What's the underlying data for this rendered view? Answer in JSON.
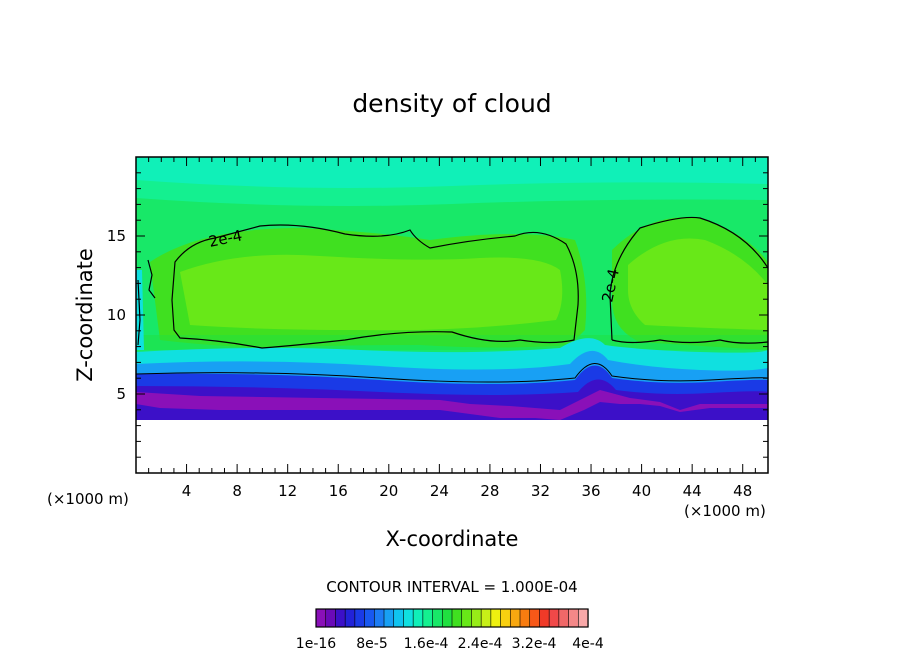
{
  "chart_data": {
    "type": "heatmap",
    "title": "density of cloud",
    "xlabel": "X-coordinate",
    "ylabel": "Z-coordinate",
    "x_unit": "(×1000 m)",
    "xlim": [
      0,
      50
    ],
    "ylim": [
      0,
      20
    ],
    "x_ticks": [
      "4",
      "8",
      "12",
      "16",
      "20",
      "24",
      "28",
      "32",
      "36",
      "40",
      "44",
      "48"
    ],
    "y_ticks": [
      "5",
      "10",
      "15"
    ],
    "contour_interval_text": "CONTOUR INTERVAL = 1.000E-04",
    "contour_label": "2e-4",
    "contour_level": 0.0002,
    "colorbar": {
      "tick_labels": [
        "1e-16",
        "8e-5",
        "1.6e-4",
        "2.4e-4",
        "3.2e-4",
        "4e-4"
      ],
      "colors": [
        "#8a10b8",
        "#6a0ab8",
        "#3c10c8",
        "#2222d8",
        "#1a3ae6",
        "#1858f0",
        "#1c7cf4",
        "#18a0f4",
        "#10c4f0",
        "#10e0e0",
        "#10f0b8",
        "#14f090",
        "#18e868",
        "#20e040",
        "#40e020",
        "#68e818",
        "#98ec18",
        "#c8f018",
        "#eef010",
        "#f8d010",
        "#f8a810",
        "#f87c10",
        "#f85818",
        "#f03a28",
        "#f04848",
        "#f06868",
        "#f48888",
        "#f8a8a8"
      ]
    }
  }
}
